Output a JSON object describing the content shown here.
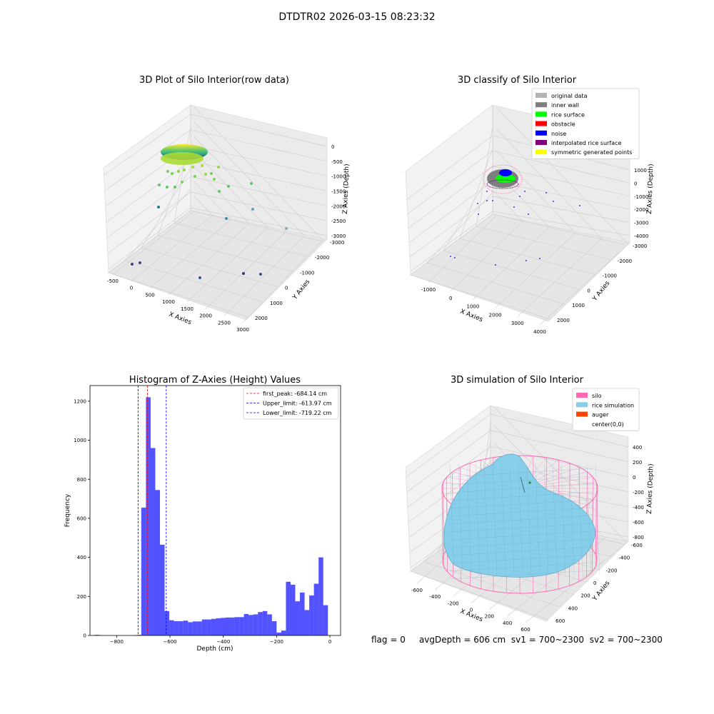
{
  "figure": {
    "title": "DTDTR02 2026-03-15 08:23:32",
    "status": {
      "flag": "flag = 0",
      "avg_depth": "avgDepth = 606 cm",
      "sv1": "sv1 = 700~2300",
      "sv2": "sv2 = 700~2300"
    }
  },
  "chart_data": [
    {
      "type": "scatter",
      "title": "3D Plot of Silo Interior(row data)",
      "xlabel": "X Axies",
      "ylabel": "Y Axies",
      "zlabel": "Z Axies (Depth)",
      "x_ticks": [
        "-500",
        "0",
        "500",
        "1000",
        "1500",
        "2000",
        "2500",
        "3000"
      ],
      "y_ticks": [
        "-3000",
        "-2000",
        "-1000",
        "0",
        "1000",
        "2000"
      ],
      "z_ticks": [
        "-3000",
        "-2500",
        "-2000",
        "-1500",
        "-1000",
        "-500",
        "0"
      ],
      "xlim": [
        -600,
        3100
      ],
      "ylim": [
        -3300,
        2500
      ],
      "zlim": [
        -3200,
        100
      ],
      "colormap": "viridis (by depth)",
      "grid": true
    },
    {
      "type": "scatter",
      "title": "3D classify of Silo Interior",
      "xlabel": "X Axies",
      "ylabel": "Y Axies",
      "zlabel": "Z Axies (Depth)",
      "x_ticks": [
        "-1000",
        "0",
        "1000",
        "2000",
        "3000",
        "4000"
      ],
      "y_ticks": [
        "-3000",
        "-2000",
        "-1000",
        "0",
        "1000",
        "2000"
      ],
      "z_ticks": [
        "-4000",
        "-3000",
        "-2000",
        "-1000",
        "0",
        "1000"
      ],
      "legend": [
        {
          "label": "original data",
          "color": "#b4b4b4"
        },
        {
          "label": "inner wall",
          "color": "#7f7f7f"
        },
        {
          "label": "rice surface",
          "color": "#00ff00"
        },
        {
          "label": "obstacle",
          "color": "#ff0000"
        },
        {
          "label": "noise",
          "color": "#0000ff"
        },
        {
          "label": "interpolated rice surface",
          "color": "#800080"
        },
        {
          "label": "symmetric generated points",
          "color": "#ffff00"
        }
      ],
      "legend_position": "top-right",
      "grid": true
    },
    {
      "type": "bar",
      "title": "Histogram of Z-Axies (Height) Values",
      "xlabel": "Depth (cm)",
      "ylabel": "Frequency",
      "xlim": [
        -900,
        40
      ],
      "ylim": [
        0,
        1280
      ],
      "x_ticks": [
        -800,
        -600,
        -400,
        -200,
        0
      ],
      "y_ticks": [
        0,
        200,
        400,
        600,
        800,
        1000,
        1200
      ],
      "bar_color": "#0000ff",
      "bin_width": 17.5,
      "bins": [
        {
          "start": -882,
          "count": 3
        },
        {
          "start": -725,
          "count": 3
        },
        {
          "start": -707.5,
          "count": 655
        },
        {
          "start": -690,
          "count": 1220
        },
        {
          "start": -672.5,
          "count": 960
        },
        {
          "start": -655,
          "count": 745
        },
        {
          "start": -637.5,
          "count": 465
        },
        {
          "start": -620,
          "count": 125
        },
        {
          "start": -602.5,
          "count": 78
        },
        {
          "start": -585,
          "count": 73
        },
        {
          "start": -567.5,
          "count": 73
        },
        {
          "start": -550,
          "count": 76
        },
        {
          "start": -532.5,
          "count": 68
        },
        {
          "start": -515,
          "count": 72
        },
        {
          "start": -497.5,
          "count": 72
        },
        {
          "start": -480,
          "count": 82
        },
        {
          "start": -462.5,
          "count": 82
        },
        {
          "start": -445,
          "count": 85
        },
        {
          "start": -427.5,
          "count": 88
        },
        {
          "start": -410,
          "count": 90
        },
        {
          "start": -392.5,
          "count": 92
        },
        {
          "start": -375,
          "count": 92
        },
        {
          "start": -357.5,
          "count": 94
        },
        {
          "start": -340,
          "count": 94
        },
        {
          "start": -322.5,
          "count": 110
        },
        {
          "start": -305,
          "count": 105
        },
        {
          "start": -287.5,
          "count": 108
        },
        {
          "start": -270,
          "count": 120
        },
        {
          "start": -252.5,
          "count": 125
        },
        {
          "start": -235,
          "count": 108
        },
        {
          "start": -217.5,
          "count": 73
        },
        {
          "start": -200,
          "count": 15
        },
        {
          "start": -182.5,
          "count": 25
        },
        {
          "start": -165,
          "count": 275
        },
        {
          "start": -147.5,
          "count": 260
        },
        {
          "start": -130,
          "count": 175
        },
        {
          "start": -112.5,
          "count": 220
        },
        {
          "start": -95,
          "count": 130
        },
        {
          "start": -77.5,
          "count": 205
        },
        {
          "start": -60,
          "count": 265
        },
        {
          "start": -42.5,
          "count": 400
        },
        {
          "start": -25,
          "count": 155
        }
      ],
      "vlines": [
        {
          "label": "first_peak: -684.14 cm",
          "x": -684.14,
          "color": "#ff0000"
        },
        {
          "label": "Upper_limit: -613.97 cm",
          "x": -613.97,
          "color": "#0000ff"
        },
        {
          "label": "Lower_limit: -719.22 cm",
          "x": -719.22,
          "color": "#0000ff"
        }
      ],
      "legend_position": "top-right",
      "grid": false
    },
    {
      "type": "surface",
      "title": "3D simulation of Silo Interior",
      "xlabel": "X Axies",
      "ylabel": "Y Axies",
      "zlabel": "Z Axies (Depth)",
      "x_ticks": [
        "-600",
        "-400",
        "-200",
        "0",
        "200",
        "400",
        "600"
      ],
      "y_ticks": [
        "-600",
        "-400",
        "-200",
        "0",
        "200",
        "400",
        "600"
      ],
      "z_ticks": [
        "-800",
        "-600",
        "-400",
        "-200",
        "0",
        "200",
        "400"
      ],
      "legend": [
        {
          "label": "silo",
          "color": "#ff69b4"
        },
        {
          "label": "rice simulation",
          "color": "#87ceeb"
        },
        {
          "label": "auger",
          "color": "#ff4500"
        },
        {
          "label": "center(0,0)",
          "color": ""
        }
      ],
      "legend_position": "top-right",
      "grid": true
    }
  ]
}
